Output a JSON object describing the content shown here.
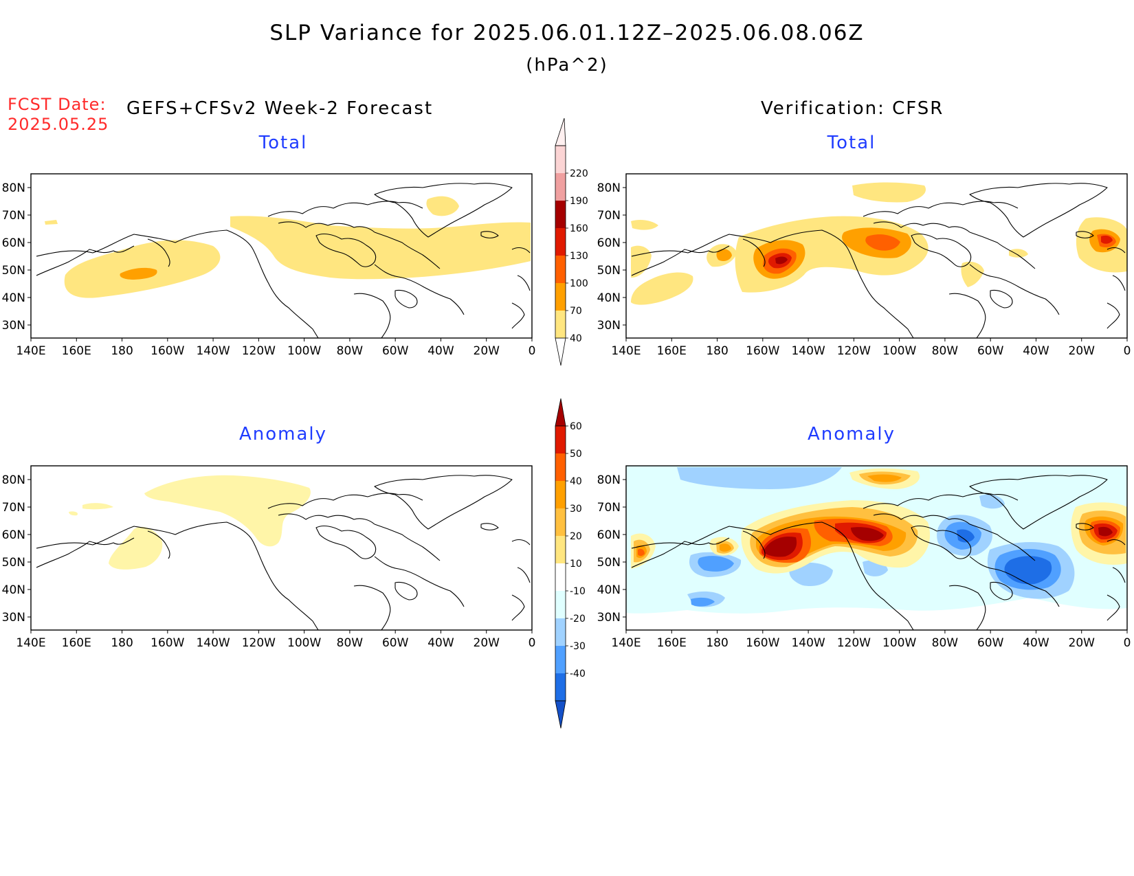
{
  "title": "SLP Variance for 2025.06.01.12Z–2025.06.08.06Z",
  "units": "(hPa^2)",
  "forecast_date": {
    "label": "FCST Date:",
    "value": "2025.05.25"
  },
  "left_header": "GEFS+CFSv2 Week-2 Forecast",
  "right_header": "Verification: CFSR",
  "panels": {
    "forecast_total": {
      "title": "Total"
    },
    "verification_total": {
      "title": "Total"
    },
    "forecast_anomaly": {
      "title": "Anomaly"
    },
    "verification_anomaly": {
      "title": "Anomaly"
    }
  },
  "map_axes": {
    "lon_ticks": [
      "140E",
      "160E",
      "180",
      "160W",
      "140W",
      "120W",
      "100W",
      "80W",
      "60W",
      "40W",
      "20W",
      "0"
    ],
    "lat_ticks": [
      "80N",
      "70N",
      "60N",
      "50N",
      "40N",
      "30N"
    ]
  },
  "colorbars": {
    "total": {
      "levels": [
        "40",
        "70",
        "100",
        "130",
        "160",
        "190",
        "220"
      ],
      "colors": [
        "#ffe680",
        "#ffa000",
        "#ff6000",
        "#e01a00",
        "#a50000",
        "#f0a0a0",
        "#fbd4d4",
        "#fff0f0"
      ]
    },
    "anomaly": {
      "levels": [
        "60",
        "50",
        "40",
        "30",
        "20",
        "10",
        "-10",
        "-20",
        "-30",
        "-40"
      ],
      "colors": [
        "#a50000",
        "#e01a00",
        "#ff6000",
        "#ffa000",
        "#ffc040",
        "#ffe680",
        "#ffffff",
        "#e0ffff",
        "#a0d2ff",
        "#50a0ff",
        "#1e6ee6",
        "#1450c8"
      ]
    }
  },
  "palette": {
    "t40": "#ffe680",
    "t70": "#ffa000",
    "t100": "#ff6000",
    "t130": "#e01a00",
    "t160": "#a50000",
    "a10": "#fff5a8",
    "a20": "#ffc040",
    "a30": "#ffa000",
    "a40": "#ff6000",
    "a50": "#e01a00",
    "a60": "#a50000",
    "n10": "#e0ffff",
    "n20": "#a0d2ff",
    "n30": "#50a0ff",
    "n40": "#1e6ee6",
    "title_blue": "#1f3cff",
    "fcst_red": "#ff2a2a"
  }
}
